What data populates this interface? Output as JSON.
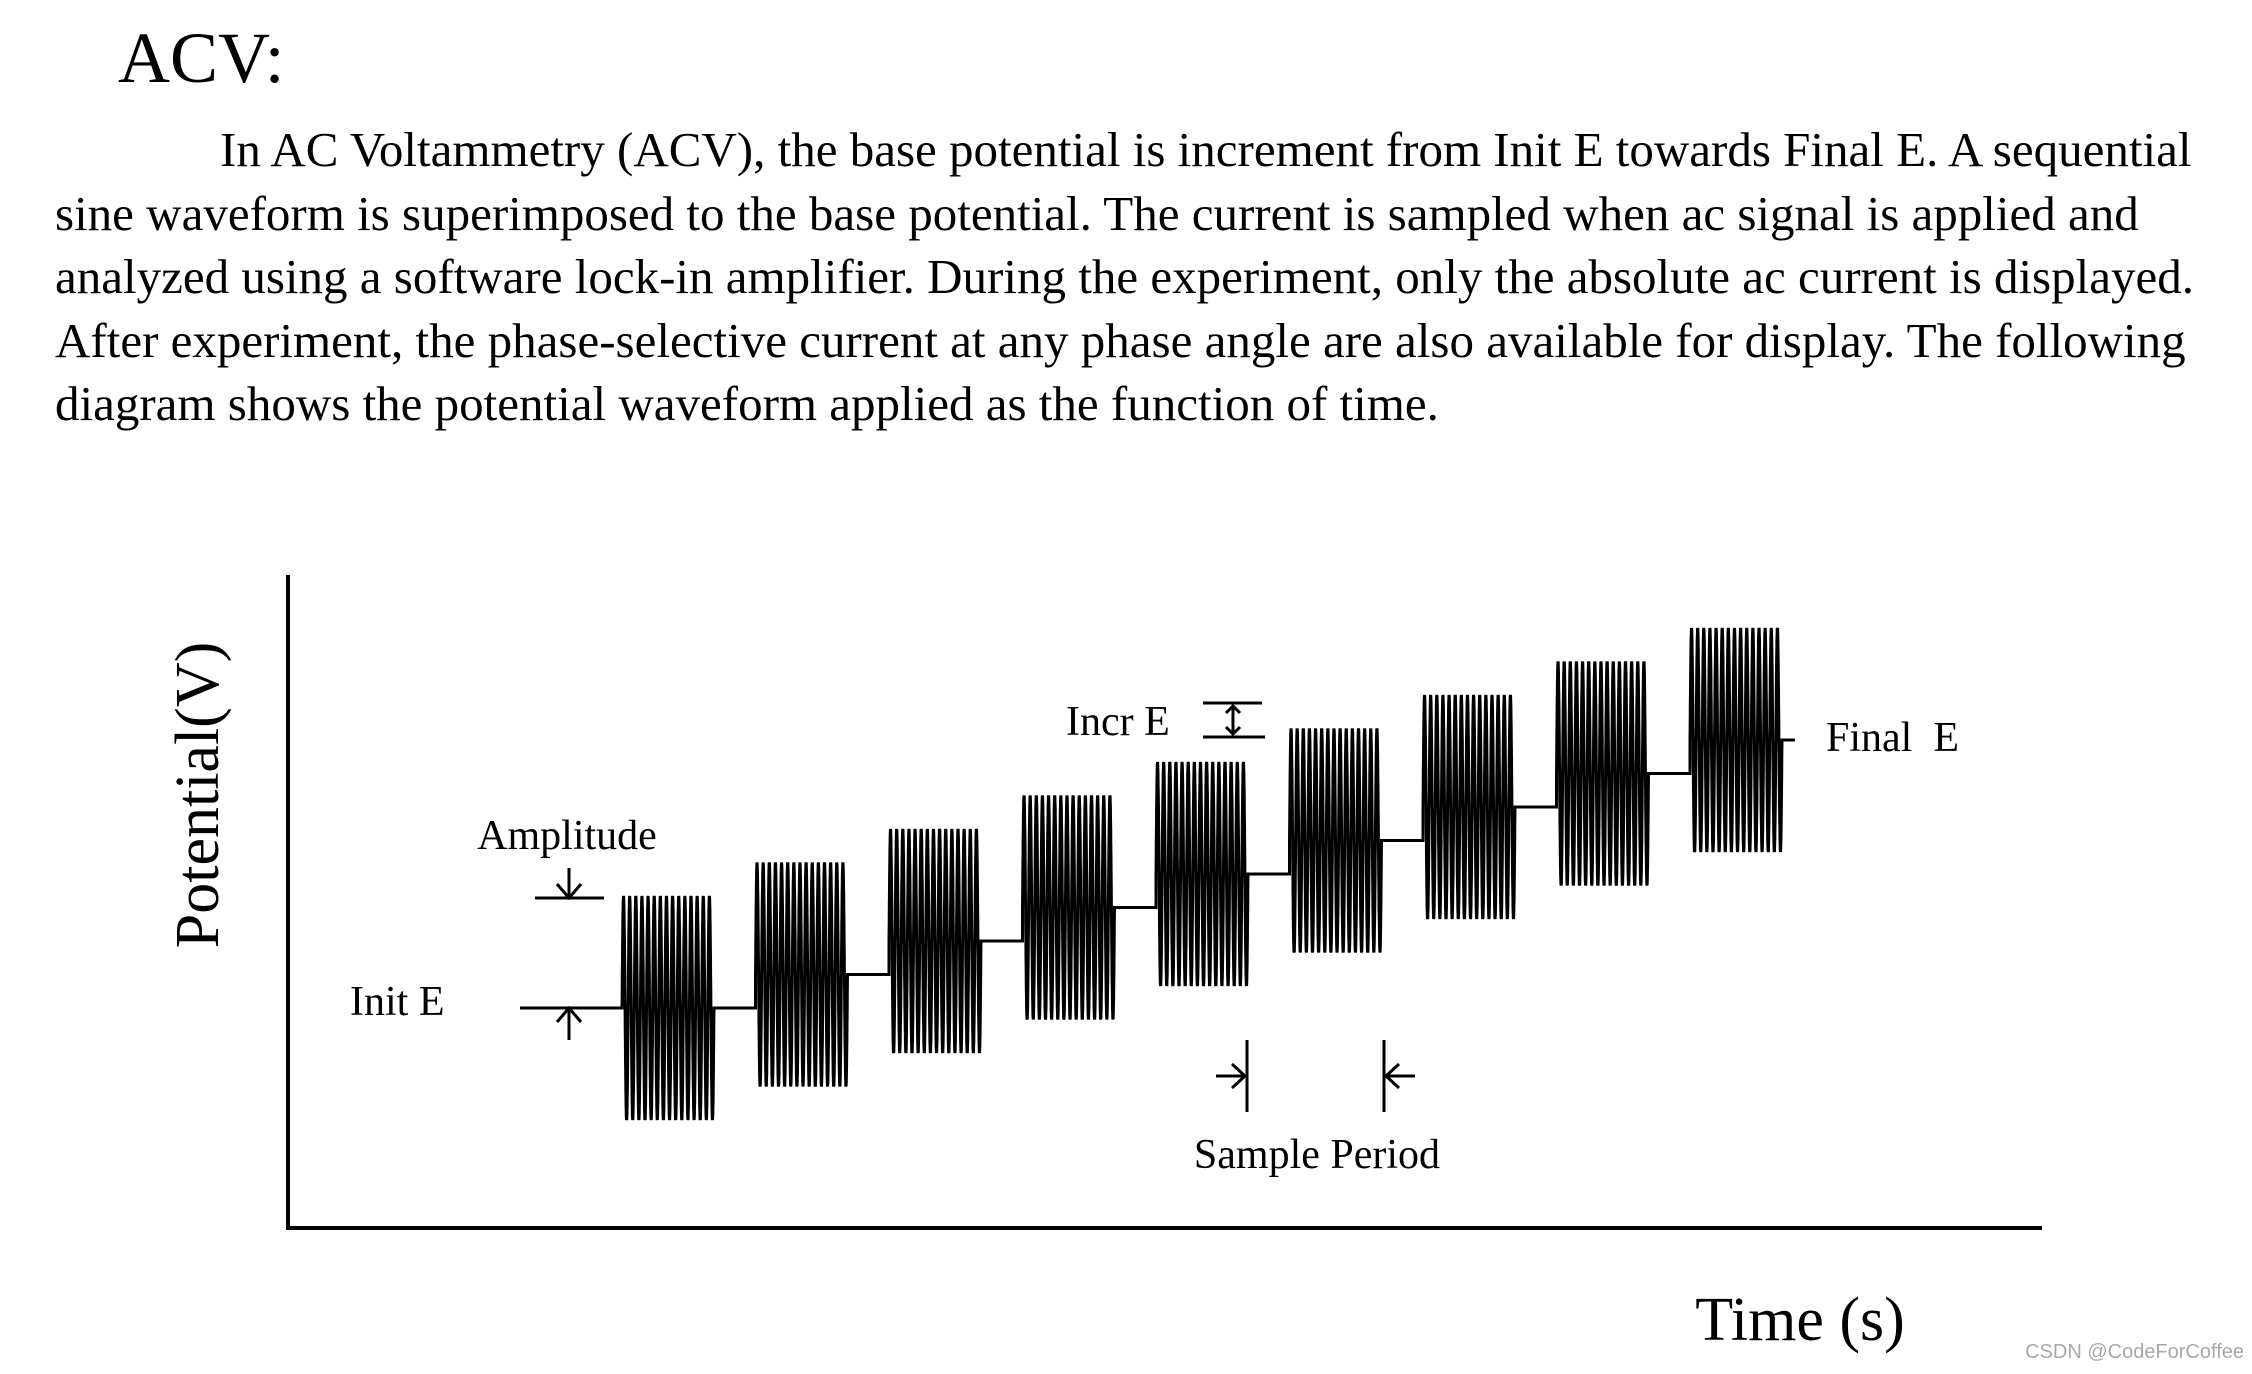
{
  "heading": "ACV:",
  "paragraph": "In AC Voltammetry (ACV), the base potential is increment from Init E towards Final E. A sequential sine waveform is superimposed to the base potential. The current is sampled when ac signal is applied and analyzed using a software lock-in amplifier. During the experiment, only the absolute ac current is displayed. After experiment, the phase-selective current at any phase angle are also available for display. The following diagram shows the potential waveform applied as the function of time.",
  "diagram": {
    "y_axis_label": "Potential(V)",
    "x_axis_label": "Time (s)",
    "labels": {
      "amplitude": "Amplitude",
      "init_e": "Init E",
      "incr_e": "Incr E",
      "final_e": "Final  E",
      "sample_period": "Sample Period"
    },
    "waveform": {
      "steps": 9,
      "cycles_per_step": 15
    }
  },
  "watermark": "CSDN @CodeForCoffee"
}
